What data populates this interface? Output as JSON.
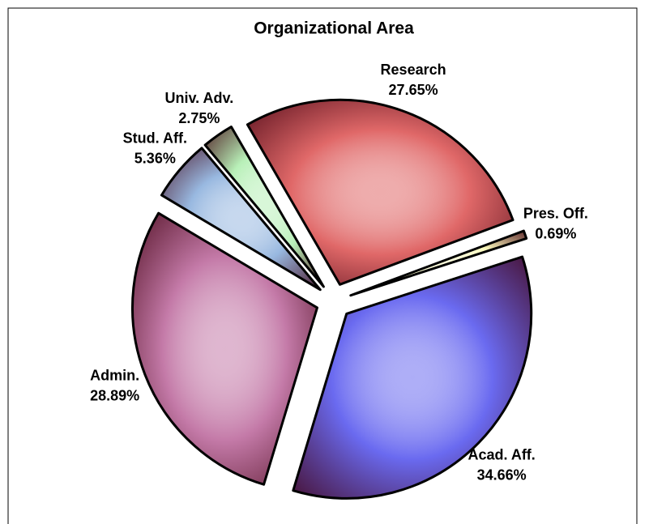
{
  "chart_data": {
    "type": "pie",
    "title": "Organizational Area",
    "categories": [
      "Research",
      "Pres. Off.",
      "Acad. Aff.",
      "Admin.",
      "Stud. Aff.",
      "Univ. Adv."
    ],
    "values": [
      27.65,
      0.69,
      34.66,
      28.89,
      5.36,
      2.75
    ],
    "value_labels": [
      "27.65%",
      "0.69%",
      "34.66%",
      "28.89%",
      "5.36%",
      "2.75%"
    ],
    "colors": [
      "#e06868",
      "#ffffc0",
      "#6a6af0",
      "#c47aa8",
      "#98b8e0",
      "#b8f0b8"
    ]
  }
}
